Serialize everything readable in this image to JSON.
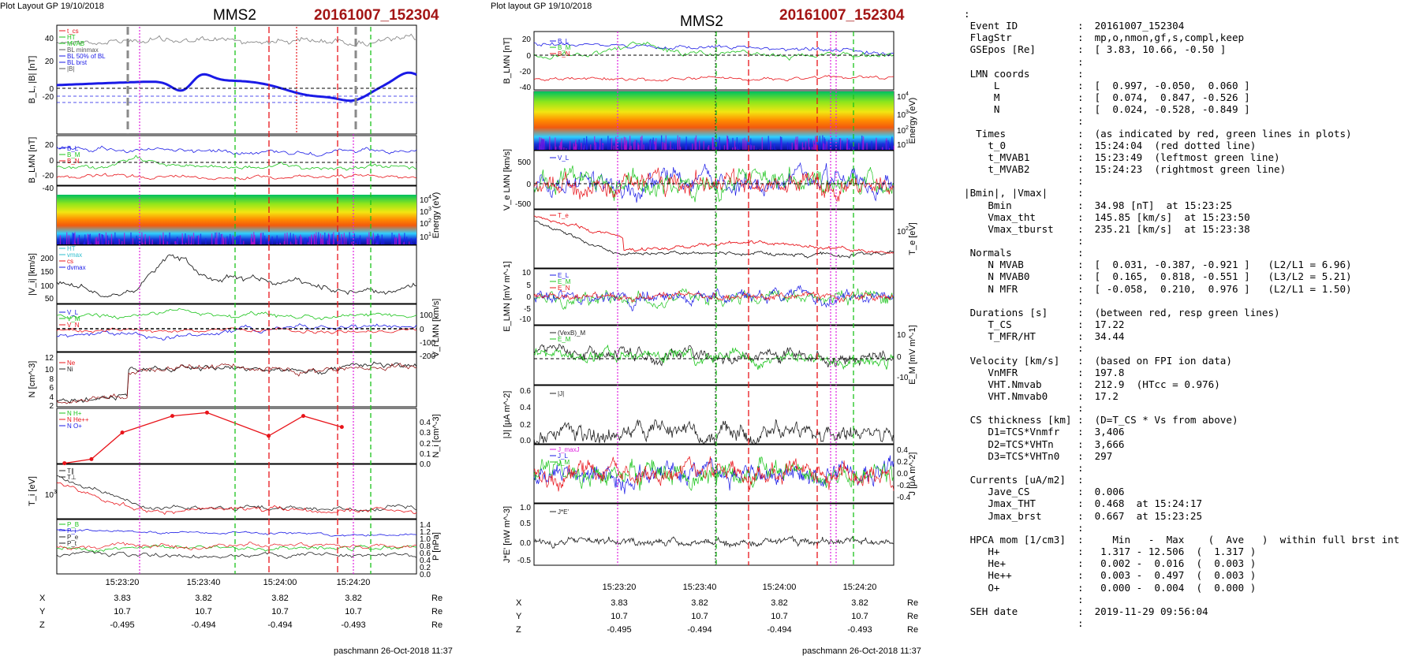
{
  "header": {
    "left_layout": "Plot Layout GP 19/10/2018",
    "right_layout": "Plot layout GP 19/10/2018",
    "spacecraft": "MMS2",
    "event_id": "20161007_152304"
  },
  "footer": {
    "signature": "paschmann 26-Oct-2018 11:37"
  },
  "time_axis": {
    "ticks": [
      "15:23:20",
      "15:23:40",
      "15:24:00",
      "15:24:20"
    ],
    "positions": {
      "labels": [
        "X",
        "Y",
        "Z"
      ],
      "unit": "Re",
      "X": [
        "3.83",
        "3.82",
        "3.82",
        "3.82"
      ],
      "Y": [
        "10.7",
        "10.7",
        "10.7",
        "10.7"
      ],
      "Z": [
        "-0.495",
        "-0.494",
        "-0.494",
        "-0.493"
      ]
    }
  },
  "colors": {
    "red": "#e8141a",
    "green": "#1bc41b",
    "blue": "#1a1ae6",
    "magenta": "#e020e0",
    "gray": "#8a8a8a",
    "event": "#a31515"
  },
  "chart_data": [
    {
      "type": "line",
      "panel": "BL |B|",
      "ylabel": "B_L, |B| [nT]",
      "yticks": [
        "40",
        "20",
        "0",
        "-20"
      ],
      "legend": [
        "t_cs",
        "HT",
        "MVAB",
        "BL minmax",
        "BL 50% of BL",
        "BL brst",
        "|B|"
      ]
    },
    {
      "type": "line",
      "panel": "B LMN",
      "ylabel": "B_LMN [nT]",
      "yticks": [
        "20",
        "0",
        "-20",
        "-40"
      ],
      "legend": [
        "B_L",
        "B_M",
        "B_N"
      ]
    },
    {
      "type": "heatmap",
      "panel": "ion energy",
      "ylabel": "Energy (eV)",
      "yticks": [
        "10^4",
        "10^3",
        "10^2",
        "10^1"
      ]
    },
    {
      "type": "line",
      "panel": "|Vi|",
      "ylabel": "|V_i| [km/s]",
      "yticks": [
        "200",
        "150",
        "100",
        "50"
      ],
      "legend": [
        "HT",
        "vmax",
        "cs",
        "dvmax"
      ]
    },
    {
      "type": "line",
      "panel": "Vi LMN",
      "ylabel": "V_i LMN [km/s]",
      "yticks": [
        "100",
        "0",
        "-100",
        "-200"
      ],
      "legend": [
        "V_L",
        "V_M",
        "V_N"
      ]
    },
    {
      "type": "line",
      "panel": "N",
      "ylabel": "N [cm^-3]",
      "yticks": [
        "12",
        "10",
        "8",
        "6",
        "4",
        "2"
      ],
      "legend": [
        "Ne",
        "Ni"
      ]
    },
    {
      "type": "line",
      "panel": "Ni HPCA",
      "ylabel": "N_i [cm^-3]",
      "yticks": [
        "0.4",
        "0.3",
        "0.2",
        "0.1",
        "0.0"
      ],
      "legend": [
        "N H+",
        "N He++",
        "N O+"
      ],
      "series": [
        {
          "name": "N He++",
          "x": [
            "15:23:05",
            "15:23:12",
            "15:23:20",
            "15:23:33",
            "15:23:42",
            "15:23:58",
            "15:24:07",
            "15:24:17"
          ],
          "values": [
            0.003,
            0.04,
            0.28,
            0.43,
            0.46,
            0.25,
            0.43,
            0.33
          ]
        }
      ]
    },
    {
      "type": "line",
      "panel": "Ti",
      "ylabel": "T_i [eV]",
      "yticks": [
        "10^3"
      ],
      "legend": [
        "T∥",
        "T⊥"
      ]
    },
    {
      "type": "line",
      "panel": "P",
      "ylabel": "P [nPa]",
      "yticks": [
        "1.4",
        "1.2",
        "1.0",
        "0.8",
        "0.6",
        "0.4",
        "0.2",
        "0.0"
      ],
      "legend": [
        "P_B",
        "P_i",
        "P_e",
        "P_t"
      ]
    },
    {
      "type": "line",
      "panel": "B LMN (right)",
      "ylabel": "B_LMN [nT]",
      "yticks": [
        "20",
        "0",
        "-20",
        "-40"
      ],
      "legend": [
        "B_L",
        "B_M",
        "B_N"
      ]
    },
    {
      "type": "heatmap",
      "panel": "electron energy",
      "ylabel": "Energy (eV)",
      "yticks": [
        "10^4",
        "10^3",
        "10^2",
        "10^1"
      ]
    },
    {
      "type": "line",
      "panel": "Ve LMN",
      "ylabel": "V_e LMN [km/s]",
      "yticks": [
        "500",
        "0",
        "-500"
      ],
      "legend": [
        "V_L"
      ]
    },
    {
      "type": "line",
      "panel": "Te",
      "ylabel": "T_e [eV]",
      "yticks": [
        "10^2"
      ],
      "legend": [
        "T_e"
      ]
    },
    {
      "type": "line",
      "panel": "E LMN",
      "ylabel": "E_LMN [mV m^-1]",
      "yticks": [
        "10",
        "5",
        "0",
        "-5",
        "-10"
      ],
      "legend": [
        "E_L",
        "E_M",
        "E_N"
      ]
    },
    {
      "type": "line",
      "panel": "EM",
      "ylabel": "E_M [mV m^-1]",
      "yticks": [
        "10",
        "0",
        "-10"
      ],
      "legend": [
        "(VexB)_M",
        "E_M"
      ]
    },
    {
      "type": "line",
      "panel": "|J|",
      "ylabel": "|J| [μA m^-2]",
      "yticks": [
        "0.6",
        "0.4",
        "0.2",
        "0.0"
      ],
      "legend": [
        "|J|"
      ]
    },
    {
      "type": "line",
      "panel": "J LMN",
      "ylabel": "J [μA m^-2]",
      "yticks": [
        "0.4",
        "0.2",
        "0.0",
        "-0.2",
        "-0.4"
      ],
      "legend": [
        "J_maxJ",
        "J_L",
        "J_M"
      ]
    },
    {
      "type": "line",
      "panel": "J*E'",
      "ylabel": "J*E' [nW m^-3]",
      "yticks": [
        "1.0",
        "0.5",
        "0.0",
        "-0.5"
      ],
      "legend": [
        "J*E'"
      ]
    }
  ],
  "text_panel": {
    "lines": [
      {
        "k": ":",
        "c": "",
        "v": ""
      },
      {
        "k": " Event ID",
        "c": ":",
        "v": " 20161007_152304"
      },
      {
        "k": " FlagStr",
        "c": ":",
        "v": " mp,o,nmon,gf,s,compl,keep"
      },
      {
        "k": " GSEpos [Re]",
        "c": ":",
        "v": " [ 3.83, 10.66, -0.50 ]"
      },
      {
        "k": "",
        "c": ":",
        "v": ""
      },
      {
        "k": " LMN coords",
        "c": ":",
        "v": ""
      },
      {
        "k": "     L",
        "c": ":",
        "v": " [  0.997, -0.050,  0.060 ]"
      },
      {
        "k": "     M",
        "c": ":",
        "v": " [  0.074,  0.847, -0.526 ]"
      },
      {
        "k": "     N",
        "c": ":",
        "v": " [  0.024, -0.528, -0.849 ]"
      },
      {
        "k": "",
        "c": ":",
        "v": ""
      },
      {
        "k": "  Times",
        "c": ":",
        "v": " (as indicated by red, green lines in plots)"
      },
      {
        "k": "    t_0",
        "c": ":",
        "v": " 15:24:04  (red dotted line)"
      },
      {
        "k": "    t_MVAB1",
        "c": ":",
        "v": " 15:23:49  (leftmost green line)"
      },
      {
        "k": "    t_MVAB2",
        "c": ":",
        "v": " 15:24:23  (rightmost green line)"
      },
      {
        "k": "",
        "c": ":",
        "v": ""
      },
      {
        "k": "|Bmin|, |Vmax|",
        "c": ":",
        "v": ""
      },
      {
        "k": "    Bmin",
        "c": ":",
        "v": " 34.98 [nT]  at 15:23:25"
      },
      {
        "k": "    Vmax_tht",
        "c": ":",
        "v": " 145.85 [km/s]  at 15:23:50"
      },
      {
        "k": "    Vmax_tburst",
        "c": ":",
        "v": " 235.21 [km/s]  at 15:23:38"
      },
      {
        "k": "",
        "c": ":",
        "v": ""
      },
      {
        "k": " Normals",
        "c": ":",
        "v": ""
      },
      {
        "k": "    N MVAB",
        "c": ":",
        "v": " [  0.031, -0.387, -0.921 ]   (L2/L1 = 6.96)"
      },
      {
        "k": "    N MVAB0",
        "c": ":",
        "v": " [  0.165,  0.818, -0.551 ]   (L3/L2 = 5.21)"
      },
      {
        "k": "    N MFR",
        "c": ":",
        "v": " [ -0.058,  0.210,  0.976 ]   (L2/L1 = 1.50)"
      },
      {
        "k": "",
        "c": ":",
        "v": ""
      },
      {
        "k": " Durations [s]",
        "c": ":",
        "v": " (between red, resp green lines)"
      },
      {
        "k": "    T_CS",
        "c": ":",
        "v": " 17.22"
      },
      {
        "k": "    T_MFR/HT",
        "c": ":",
        "v": " 34.44"
      },
      {
        "k": "",
        "c": ":",
        "v": ""
      },
      {
        "k": " Velocity [km/s]",
        "c": ":",
        "v": " (based on FPI ion data)"
      },
      {
        "k": "    VnMFR",
        "c": ":",
        "v": " 197.8"
      },
      {
        "k": "    VHT.Nmvab",
        "c": ":",
        "v": " 212.9  (HTcc = 0.976)"
      },
      {
        "k": "    VHT.Nmvab0",
        "c": ":",
        "v": " 17.2"
      },
      {
        "k": "",
        "c": ":",
        "v": ""
      },
      {
        "k": " CS thickness [km]",
        "c": ":",
        "v": " (D=T_CS * Vs from above)"
      },
      {
        "k": "    D1=TCS*Vnmfr",
        "c": ":",
        "v": " 3,406"
      },
      {
        "k": "    D2=TCS*VHTn",
        "c": ":",
        "v": " 3,666"
      },
      {
        "k": "    D3=TCS*VHTn0",
        "c": ":",
        "v": " 297"
      },
      {
        "k": "",
        "c": ":",
        "v": ""
      },
      {
        "k": " Currents [uA/m2]",
        "c": ":",
        "v": ""
      },
      {
        "k": "    Jave_CS",
        "c": ":",
        "v": " 0.006"
      },
      {
        "k": "    Jmax_THT",
        "c": ":",
        "v": " 0.468  at 15:24:17"
      },
      {
        "k": "    Jmax_brst",
        "c": ":",
        "v": " 0.667  at 15:23:25"
      },
      {
        "k": "",
        "c": ":",
        "v": ""
      },
      {
        "k": " HPCA mom [1/cm3]",
        "c": ":",
        "v": "    Min   -  Max    (  Ave   )  within full brst int"
      },
      {
        "k": "    H+",
        "c": ":",
        "v": "  1.317 - 12.506  (  1.317 )"
      },
      {
        "k": "    He+",
        "c": ":",
        "v": "  0.002 -  0.016  (  0.003 )"
      },
      {
        "k": "    He++",
        "c": ":",
        "v": "  0.003 -  0.497  (  0.003 )"
      },
      {
        "k": "    O+",
        "c": ":",
        "v": "  0.000 -  0.004  (  0.000 )"
      },
      {
        "k": "",
        "c": ":",
        "v": ""
      },
      {
        "k": " SEH date",
        "c": ":",
        "v": " 2019-11-29 09:56:04"
      },
      {
        "k": "",
        "c": ":",
        "v": ""
      }
    ]
  }
}
